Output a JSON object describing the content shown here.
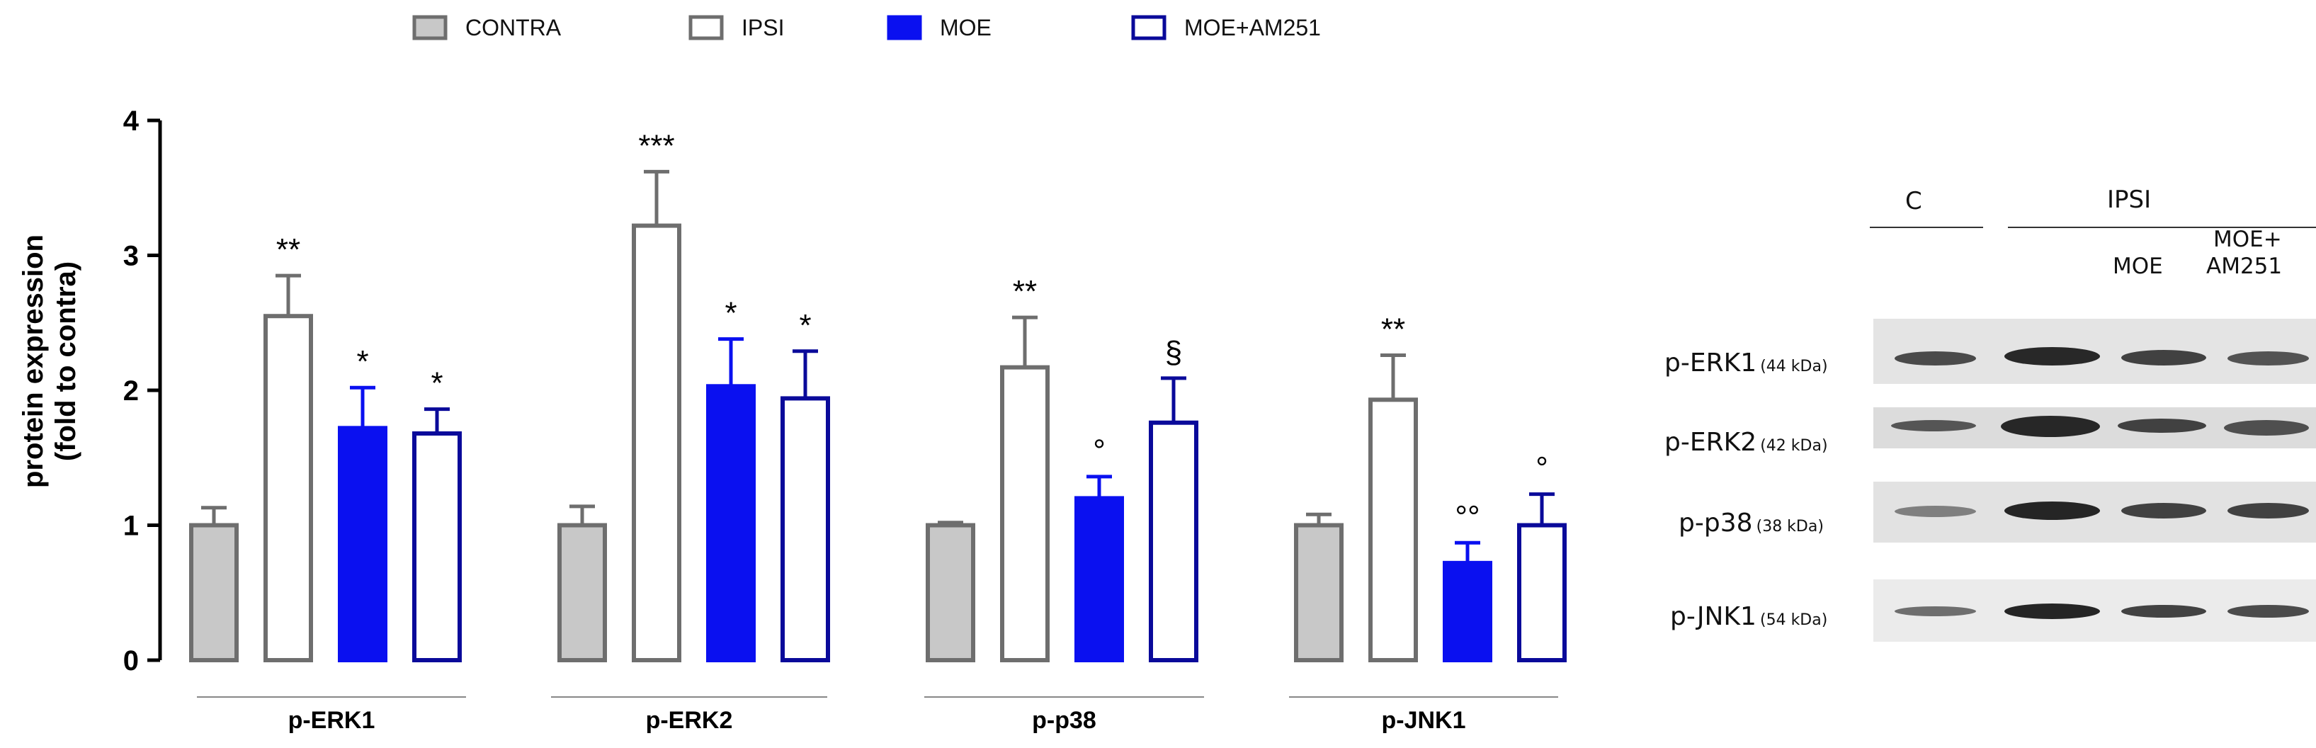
{
  "legend": [
    {
      "label": "CONTRA",
      "fill": "#c8c8c8",
      "stroke": "#6e6e6e"
    },
    {
      "label": "IPSI",
      "fill": "#ffffff",
      "stroke": "#6e6e6e"
    },
    {
      "label": "MOE",
      "fill": "#0a10f0",
      "stroke": "#0a10f0"
    },
    {
      "label": "MOE+AM251",
      "fill": "#ffffff",
      "stroke": "#0a0a9a"
    }
  ],
  "chart_data": {
    "type": "bar",
    "ylabel": [
      "protein expression",
      "(fold to contra)"
    ],
    "ylim": [
      0,
      4
    ],
    "yticks": [
      "0",
      "1",
      "2",
      "3",
      "4"
    ],
    "categories": [
      "p-ERK1",
      "p-ERK2",
      "p-p38",
      "p-JNK1"
    ],
    "series": [
      {
        "name": "CONTRA",
        "values": [
          1.0,
          1.0,
          1.0,
          1.0
        ],
        "errors": [
          0.13,
          0.14,
          0.02,
          0.08
        ],
        "annotations": [
          "",
          "",
          "",
          ""
        ]
      },
      {
        "name": "IPSI",
        "values": [
          2.55,
          3.22,
          2.17,
          1.93
        ],
        "errors": [
          0.3,
          0.4,
          0.37,
          0.33
        ],
        "annotations": [
          "**",
          "***",
          "**",
          "**"
        ]
      },
      {
        "name": "MOE",
        "values": [
          1.72,
          2.03,
          1.2,
          0.72
        ],
        "errors": [
          0.3,
          0.35,
          0.16,
          0.15
        ],
        "annotations": [
          "*",
          "*",
          "°",
          "°°"
        ]
      },
      {
        "name": "MOE+AM251",
        "values": [
          1.68,
          1.94,
          1.76,
          1.0
        ],
        "errors": [
          0.18,
          0.35,
          0.33,
          0.23
        ],
        "annotations": [
          "*",
          "*",
          "§",
          "°"
        ]
      }
    ]
  },
  "blot": {
    "header_c": "C",
    "header_ipsi": "IPSI",
    "header_moe": "MOE",
    "header_moe_am_1": "MOE+",
    "header_moe_am_2": "AM251",
    "rows": [
      {
        "name": "p-ERK1",
        "kda": "(44 kDa)"
      },
      {
        "name": "p-ERK2",
        "kda": "(42 kDa)"
      },
      {
        "name": "p-p38",
        "kda": "(38 kDa)"
      },
      {
        "name": "p-JNK1",
        "kda": "(54 kDa)"
      }
    ]
  }
}
